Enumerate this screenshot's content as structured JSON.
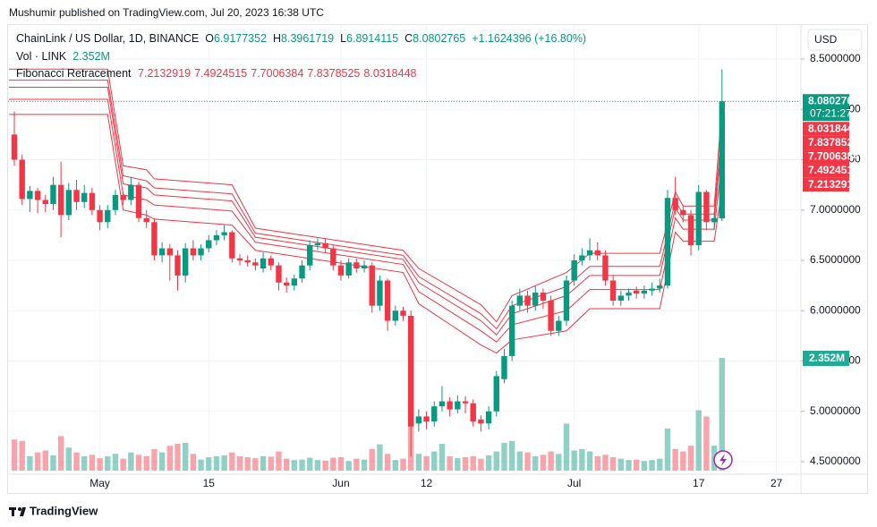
{
  "publish_note": "Mushumir published on TradingView.com, Jul 20, 2023 16:38 UTC",
  "brand": "TradingView",
  "currency": "USD",
  "chart_data": {
    "type": "candlestick",
    "title": "ChainLink / US Dollar, 1D, BINANCE",
    "legend_labels": {
      "open": "O",
      "high": "H",
      "low": "L",
      "close": "C"
    },
    "change": "+1.1624396 (+16.80%)",
    "countdown": "07:21:27",
    "up_color": "#089981",
    "down_color": "#f23645",
    "ylim": [
      4.216,
      8.82
    ],
    "yticks": [
      {
        "value": 4.5,
        "label": "4.5000000"
      },
      {
        "value": 5,
        "label": "5.0000000"
      },
      {
        "value": 5.5,
        "label": "5.5000000"
      },
      {
        "value": 6,
        "label": "6.0000000"
      },
      {
        "value": 6.5,
        "label": "6.5000000"
      },
      {
        "value": 7,
        "label": "7.0000000"
      },
      {
        "value": 7.5,
        "label": "7.5000000"
      },
      {
        "value": 8,
        "label": "8.0000000"
      },
      {
        "value": 8.5,
        "label": "8.5000000"
      }
    ],
    "categories": [
      null,
      null,
      null,
      null,
      null,
      null,
      null,
      null,
      null,
      null,
      null,
      "May",
      null,
      null,
      null,
      null,
      null,
      null,
      null,
      null,
      null,
      null,
      null,
      null,
      null,
      "15",
      null,
      null,
      null,
      null,
      null,
      null,
      null,
      null,
      null,
      null,
      null,
      null,
      null,
      null,
      null,
      null,
      "Jun",
      null,
      null,
      null,
      null,
      null,
      null,
      null,
      null,
      null,
      null,
      "12",
      null,
      null,
      null,
      null,
      null,
      null,
      null,
      null,
      null,
      null,
      null,
      null,
      null,
      null,
      null,
      null,
      null,
      null,
      "Jul",
      null,
      null,
      null,
      null,
      null,
      null,
      null,
      null,
      null,
      null,
      null,
      null,
      null,
      null,
      null,
      "17",
      null,
      null,
      null,
      null,
      null,
      null,
      null,
      null,
      null,
      "27"
    ],
    "open": [
      7.75,
      7.5,
      7.11,
      7.19,
      7.1,
      7.06,
      7.25,
      6.95,
      7.2,
      7.08,
      7.17,
      7.0,
      6.88,
      7.0,
      7.15,
      7.1,
      7.25,
      6.92,
      6.88,
      6.55,
      6.62,
      6.55,
      6.35,
      6.62,
      6.55,
      6.62,
      6.7,
      6.75,
      6.78,
      6.52,
      6.5,
      6.48,
      6.42,
      6.52,
      6.45,
      6.28,
      6.25,
      6.32,
      6.45,
      6.65,
      6.67,
      6.62,
      6.45,
      6.35,
      6.48,
      6.42,
      6.45,
      6.05,
      6.3,
      5.9,
      6.0,
      5.95,
      4.88,
      4.95,
      4.9,
      5.05,
      5.1,
      5.02,
      5.1,
      5.08,
      4.92,
      4.88,
      5.0,
      5.32,
      5.55,
      6.05,
      6.15,
      6.05,
      6.18,
      6.1,
      5.8,
      5.9,
      6.3,
      6.5,
      6.55,
      6.6,
      6.55,
      6.3,
      6.1,
      6.15,
      6.2,
      6.17,
      6.2,
      6.22,
      6.25,
      7.12,
      7.0,
      6.95,
      6.65,
      7.18,
      6.88,
      6.9177352,
      null,
      null,
      null,
      null,
      null,
      null,
      null
    ],
    "high": [
      7.98,
      7.55,
      7.24,
      7.22,
      7.15,
      7.33,
      7.48,
      7.27,
      7.3,
      7.25,
      7.22,
      7.05,
      7.05,
      7.2,
      7.18,
      7.33,
      7.28,
      7.0,
      6.92,
      6.68,
      6.66,
      6.6,
      6.67,
      6.7,
      6.66,
      6.75,
      6.8,
      6.85,
      6.8,
      6.56,
      6.55,
      6.52,
      6.58,
      6.55,
      6.48,
      6.33,
      6.36,
      6.5,
      6.7,
      6.72,
      6.72,
      6.65,
      6.5,
      6.52,
      6.52,
      6.5,
      6.48,
      6.35,
      6.32,
      6.05,
      6.04,
      6.0,
      5.02,
      5.0,
      5.1,
      5.25,
      5.14,
      5.16,
      5.15,
      5.12,
      4.96,
      5.05,
      5.4,
      5.62,
      6.1,
      6.22,
      6.2,
      6.25,
      6.22,
      6.15,
      5.95,
      6.35,
      6.56,
      6.62,
      6.72,
      6.68,
      6.6,
      6.35,
      6.2,
      6.22,
      6.24,
      6.25,
      6.28,
      6.32,
      7.2,
      7.33,
      7.05,
      7.0,
      7.25,
      7.2,
      6.98,
      8.3961719,
      null,
      null,
      null,
      null,
      null,
      null,
      null
    ],
    "low": [
      7.44,
      7.05,
      6.98,
      6.97,
      6.98,
      7.0,
      6.73,
      6.9,
      7.0,
      7.02,
      6.95,
      6.8,
      6.82,
      6.95,
      7.05,
      7.05,
      6.88,
      6.82,
      6.5,
      6.48,
      6.3,
      6.2,
      6.28,
      6.5,
      6.5,
      6.58,
      6.65,
      6.7,
      6.48,
      6.45,
      6.44,
      6.4,
      6.38,
      6.4,
      6.2,
      6.18,
      6.2,
      6.28,
      6.4,
      6.6,
      6.58,
      6.4,
      6.3,
      6.32,
      6.38,
      6.38,
      5.98,
      6.0,
      5.8,
      5.85,
      5.9,
      4.55,
      4.8,
      4.82,
      4.85,
      5.0,
      4.95,
      4.98,
      4.98,
      4.85,
      4.8,
      4.82,
      4.95,
      5.28,
      5.5,
      6.0,
      5.98,
      6.0,
      6.02,
      5.75,
      5.75,
      5.85,
      6.25,
      6.45,
      6.5,
      6.5,
      6.25,
      6.05,
      6.05,
      6.1,
      6.12,
      6.12,
      6.15,
      6.18,
      6.22,
      6.95,
      6.88,
      6.55,
      6.6,
      6.8,
      6.8,
      6.8914115,
      null,
      null,
      null,
      null,
      null,
      null,
      null
    ],
    "close": [
      7.5,
      7.11,
      7.19,
      7.1,
      7.06,
      7.25,
      6.95,
      7.2,
      7.08,
      7.17,
      7.0,
      6.88,
      7.0,
      7.15,
      7.1,
      7.25,
      6.92,
      6.88,
      6.55,
      6.62,
      6.55,
      6.35,
      6.62,
      6.55,
      6.62,
      6.7,
      6.75,
      6.78,
      6.52,
      6.5,
      6.48,
      6.45,
      6.52,
      6.45,
      6.28,
      6.25,
      6.32,
      6.45,
      6.65,
      6.67,
      6.62,
      6.45,
      6.35,
      6.48,
      6.42,
      6.45,
      6.05,
      6.3,
      5.9,
      6.0,
      5.95,
      4.85,
      4.95,
      4.9,
      5.05,
      5.1,
      5.02,
      5.1,
      5.08,
      4.9,
      4.88,
      5.0,
      5.35,
      5.55,
      6.05,
      6.15,
      6.05,
      6.18,
      6.1,
      5.8,
      5.9,
      6.3,
      6.5,
      6.55,
      6.6,
      6.55,
      6.3,
      6.1,
      6.15,
      6.18,
      6.17,
      6.2,
      6.22,
      6.25,
      7.12,
      7.0,
      6.95,
      6.65,
      7.18,
      6.88,
      6.92,
      8.0802765,
      null,
      null,
      null,
      null,
      null,
      null,
      null
    ],
    "volume": {
      "name": "Vol · LINK",
      "values": [
        650000,
        620000,
        300000,
        380000,
        420000,
        320000,
        720000,
        480000,
        380000,
        300000,
        330000,
        260000,
        300000,
        350000,
        250000,
        380000,
        330000,
        300000,
        450000,
        380000,
        520000,
        560000,
        580000,
        350000,
        230000,
        280000,
        300000,
        320000,
        380000,
        300000,
        280000,
        260000,
        300000,
        290000,
        400000,
        250000,
        220000,
        230000,
        270000,
        220000,
        210000,
        270000,
        280000,
        200000,
        250000,
        230000,
        450000,
        550000,
        350000,
        220000,
        250000,
        1450000,
        350000,
        300000,
        400000,
        560000,
        300000,
        260000,
        280000,
        300000,
        250000,
        320000,
        400000,
        580000,
        620000,
        400000,
        380000,
        300000,
        330000,
        400000,
        350000,
        980000,
        420000,
        450000,
        400000,
        300000,
        330000,
        280000,
        250000,
        220000,
        230000,
        200000,
        220000,
        250000,
        880000,
        450000,
        400000,
        520000,
        1260000,
        1130000,
        520000,
        2352000,
        null,
        null,
        null,
        null,
        null,
        null,
        null
      ],
      "value_labels": [
        null,
        null,
        null,
        null,
        null,
        null,
        null,
        null,
        null,
        null,
        null,
        null,
        null,
        null,
        null,
        null,
        null,
        null,
        null,
        null,
        null,
        null,
        null,
        null,
        null,
        null,
        null,
        null,
        null,
        null,
        null,
        null,
        null,
        null,
        null,
        null,
        null,
        null,
        null,
        null,
        null,
        null,
        null,
        null,
        null,
        null,
        null,
        null,
        null,
        null,
        null,
        null,
        null,
        null,
        null,
        null,
        null,
        null,
        null,
        null,
        null,
        null,
        null,
        null,
        null,
        null,
        null,
        null,
        null,
        null,
        null,
        null,
        null,
        null,
        null,
        null,
        null,
        null,
        null,
        null,
        null,
        null,
        null,
        null,
        null,
        null,
        null,
        null,
        null,
        null,
        null,
        "2.352M",
        null,
        null,
        null,
        null,
        null,
        null,
        null
      ]
    },
    "fib": {
      "name": "Fibonacci Retracement",
      "color": "#f23645",
      "x": [
        0,
        12,
        14,
        17,
        18,
        28,
        31,
        50,
        52,
        60,
        62,
        64,
        71,
        74,
        83,
        85,
        86,
        90,
        91
      ],
      "levels": [
        [
          7.95,
          7.95,
          7.0,
          6.95,
          6.91,
          6.85,
          6.6,
          6.38,
          6.07,
          5.66,
          5.58,
          5.71,
          5.8,
          6.02,
          6.02,
          6.78,
          6.69,
          6.69,
          7.2132919
        ],
        [
          8.1,
          8.1,
          7.15,
          7.1,
          7.05,
          6.99,
          6.68,
          6.46,
          6.19,
          5.8,
          5.69,
          5.86,
          6.0,
          6.21,
          6.21,
          6.92,
          6.81,
          6.81,
          7.4924515
        ],
        [
          8.22,
          8.22,
          7.26,
          7.22,
          7.15,
          7.09,
          6.73,
          6.51,
          6.28,
          5.9,
          5.76,
          5.97,
          6.15,
          6.35,
          6.35,
          7.02,
          6.9,
          6.9,
          7.7006384
        ],
        [
          8.29,
          8.29,
          7.34,
          7.29,
          7.22,
          7.16,
          6.77,
          6.55,
          6.34,
          5.97,
          5.82,
          6.05,
          6.24,
          6.44,
          6.44,
          7.09,
          6.96,
          6.96,
          7.8378525
        ],
        [
          8.4,
          8.4,
          7.44,
          7.4,
          7.31,
          7.25,
          6.82,
          6.6,
          6.42,
          6.06,
          5.89,
          6.15,
          6.38,
          6.57,
          6.57,
          7.18,
          7.04,
          7.04,
          8.0318448
        ]
      ]
    }
  }
}
